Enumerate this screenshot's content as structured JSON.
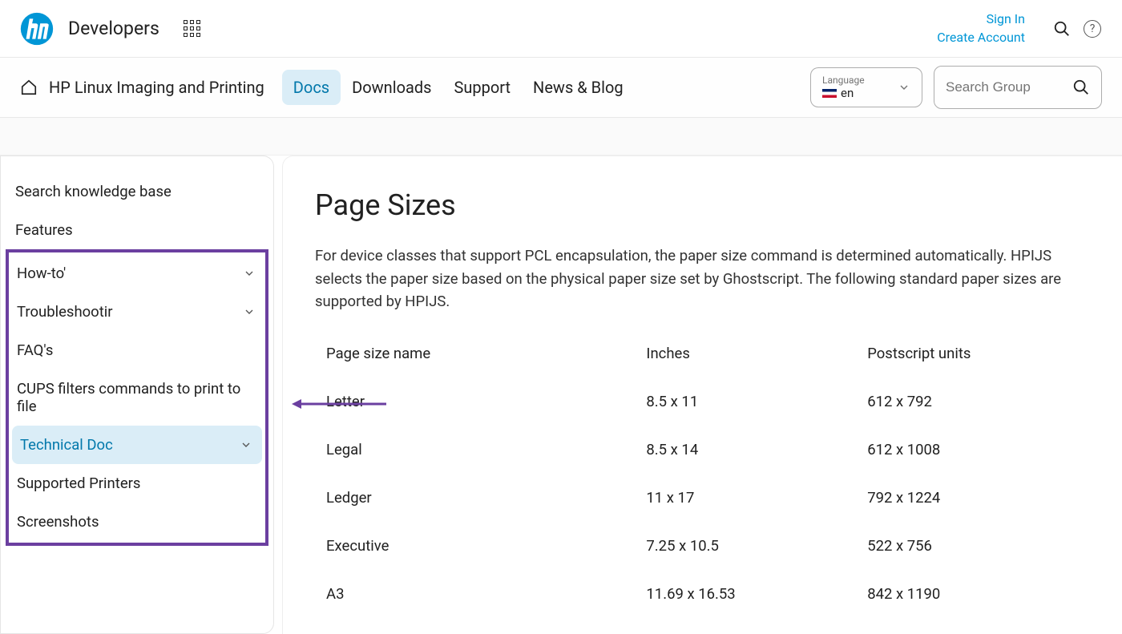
{
  "header": {
    "brand_title": "Developers",
    "sign_in": "Sign In",
    "create_account": "Create Account"
  },
  "nav": {
    "site_name": "HP Linux Imaging and Printing",
    "tabs": [
      {
        "label": "Docs",
        "active": true
      },
      {
        "label": "Downloads",
        "active": false
      },
      {
        "label": "Support",
        "active": false
      },
      {
        "label": "News & Blog",
        "active": false
      }
    ],
    "language_label": "Language",
    "language_value": "en",
    "search_placeholder": "Search Group"
  },
  "sidebar": {
    "top_items": [
      {
        "label": "Search knowledge base",
        "chevron": false
      },
      {
        "label": "Features",
        "chevron": false
      }
    ],
    "boxed_items": [
      {
        "label": "How-to's",
        "chevron": true,
        "truncated_display": "How-to'"
      },
      {
        "label": "Troubleshooting",
        "chevron": true,
        "truncated_display": "Troubleshootir"
      },
      {
        "label": "FAQ's",
        "chevron": false
      },
      {
        "label": "CUPS filters commands to print to file",
        "chevron": false
      },
      {
        "label": "Technical Doc",
        "chevron": true,
        "active": true
      },
      {
        "label": "Supported Printers",
        "chevron": false
      },
      {
        "label": "Screenshots",
        "chevron": false
      }
    ]
  },
  "main": {
    "title": "Page Sizes",
    "description": "For device classes that support PCL encapsulation, the paper size command is determined automatically. HPIJS selects the paper size based on the physical paper size set by Ghostscript. The following standard paper sizes are supported by HPIJS.",
    "table": {
      "headers": [
        "Page size name",
        "Inches",
        "Postscript units"
      ],
      "rows": [
        [
          "Letter",
          "8.5 x 11",
          "612 x 792"
        ],
        [
          "Legal",
          "8.5 x 14",
          "612 x 1008"
        ],
        [
          "Ledger",
          "11 x 17",
          "792 x 1224"
        ],
        [
          "Executive",
          "7.25 x 10.5",
          "522 x 756"
        ],
        [
          "A3",
          "11.69 x 16.53",
          "842 x 1190"
        ]
      ]
    }
  },
  "annotation": {
    "highlight_color": "#6b3fa0",
    "arrow_color": "#6b3fa0"
  }
}
